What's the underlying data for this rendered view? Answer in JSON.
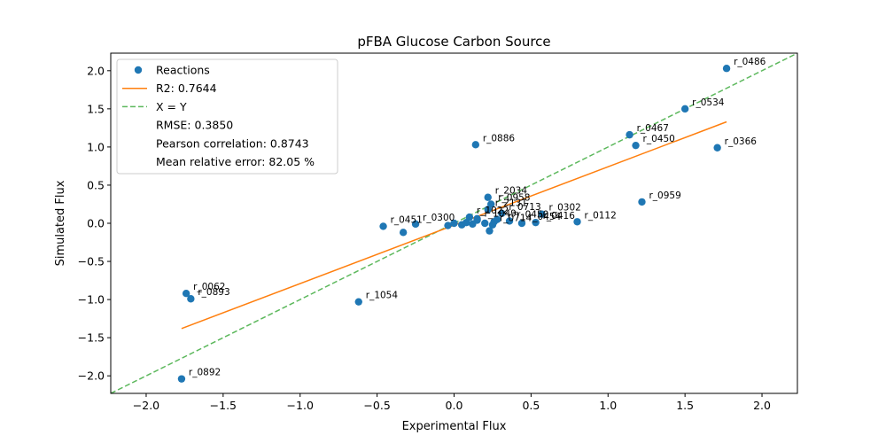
{
  "chart_data": {
    "type": "scatter",
    "title": "pFBA Glucose Carbon Source",
    "xlabel": "Experimental Flux",
    "ylabel": "Simulated Flux",
    "xlim": [
      -2.23,
      2.23
    ],
    "ylim": [
      -2.23,
      2.23
    ],
    "xticks": [
      -2.0,
      -1.5,
      -1.0,
      -0.5,
      0.0,
      0.5,
      1.0,
      1.5,
      2.0
    ],
    "xtick_labels": [
      "−2.0",
      "−1.5",
      "−1.0",
      "−0.5",
      "0.0",
      "0.5",
      "1.0",
      "1.5",
      "2.0"
    ],
    "yticks": [
      -2.0,
      -1.5,
      -1.0,
      -0.5,
      0.0,
      0.5,
      1.0,
      1.5,
      2.0
    ],
    "ytick_labels": [
      "−2.0",
      "−1.5",
      "−1.0",
      "−0.5",
      "0.0",
      "0.5",
      "1.0",
      "1.5",
      "2.0"
    ],
    "grid": false,
    "legend_position": "top-left",
    "colors": {
      "points": "#1f77b4",
      "fit": "#ff7f0e",
      "identity": "#5cb85c"
    },
    "points": [
      {
        "label": "r_0486",
        "x": 1.77,
        "y": 2.03
      },
      {
        "label": "r_0534",
        "x": 1.5,
        "y": 1.5
      },
      {
        "label": "r_0467",
        "x": 1.14,
        "y": 1.16
      },
      {
        "label": "r_0450",
        "x": 1.18,
        "y": 1.02
      },
      {
        "label": "r_0366",
        "x": 1.71,
        "y": 0.99
      },
      {
        "label": "r_0886",
        "x": 0.14,
        "y": 1.03
      },
      {
        "label": "r_0959",
        "x": 1.22,
        "y": 0.28
      },
      {
        "label": "r_2034",
        "x": 0.22,
        "y": 0.34
      },
      {
        "label": "r_0958",
        "x": 0.24,
        "y": 0.25
      },
      {
        "label": "r_0713",
        "x": 0.31,
        "y": 0.13
      },
      {
        "label": "r_0302",
        "x": 0.57,
        "y": 0.12
      },
      {
        "label": "r_2131",
        "x": 0.22,
        "y": 0.18
      },
      {
        "label": "r_0112",
        "x": 0.8,
        "y": 0.02
      },
      {
        "label": "r_0416",
        "x": 0.53,
        "y": 0.01
      },
      {
        "label": "r_0454",
        "x": 0.44,
        "y": 0.0
      },
      {
        "label": "r_0450",
        "x": 0.36,
        "y": 0.03
      },
      {
        "label": "r_0714",
        "x": 0.25,
        "y": -0.02
      },
      {
        "label": "r_1022",
        "x": 0.1,
        "y": 0.08
      },
      {
        "label": "r_1049",
        "x": 0.15,
        "y": 0.04
      },
      {
        "label": "r_0300",
        "x": -0.25,
        "y": -0.01
      },
      {
        "label": "r_0451",
        "x": -0.46,
        "y": -0.04
      },
      {
        "label": "r_0062",
        "x": -1.74,
        "y": -0.92
      },
      {
        "label": "r_0893",
        "x": -1.71,
        "y": -0.99
      },
      {
        "label": "r_1054",
        "x": -0.62,
        "y": -1.03
      },
      {
        "label": "r_0892",
        "x": -1.77,
        "y": -2.04
      },
      {
        "label": "",
        "x": -0.33,
        "y": -0.12
      },
      {
        "label": "",
        "x": 0.23,
        "y": -0.1
      },
      {
        "label": "",
        "x": 0.05,
        "y": -0.02
      },
      {
        "label": "",
        "x": 0.2,
        "y": 0.0
      },
      {
        "label": "",
        "x": 0.15,
        "y": 0.06
      },
      {
        "label": "",
        "x": 0.08,
        "y": 0.01
      },
      {
        "label": "",
        "x": 0.28,
        "y": 0.05
      },
      {
        "label": "",
        "x": 0.12,
        "y": -0.01
      },
      {
        "label": "",
        "x": 0.0,
        "y": 0.0
      },
      {
        "label": "",
        "x": -0.04,
        "y": -0.03
      },
      {
        "label": "",
        "x": 0.26,
        "y": 0.02
      }
    ],
    "fit_line": {
      "x": [
        -1.77,
        1.77
      ],
      "y": [
        -1.38,
        1.33
      ]
    },
    "identity_line": {
      "x": [
        -2.23,
        2.23
      ],
      "y": [
        -2.23,
        2.23
      ]
    },
    "legend": [
      {
        "kind": "marker",
        "label": "Reactions"
      },
      {
        "kind": "line",
        "label": "R2: 0.7644"
      },
      {
        "kind": "dashed",
        "label": "X = Y"
      },
      {
        "kind": "text",
        "label": "RMSE: 0.3850"
      },
      {
        "kind": "text",
        "label": "Pearson correlation: 0.8743"
      },
      {
        "kind": "text",
        "label": "Mean relative error: 82.05 %"
      }
    ]
  }
}
